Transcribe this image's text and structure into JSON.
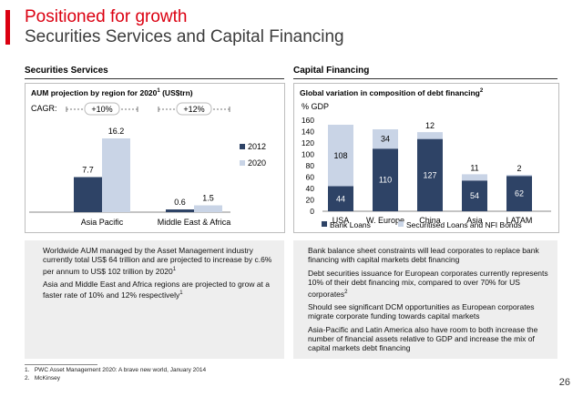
{
  "header": {
    "title_line1": "Positioned for growth",
    "title_line2": "Securities Services and Capital Financing"
  },
  "colors": {
    "accent": "#db0011",
    "dark_series": "#2e4366",
    "light_series": "#c9d4e6"
  },
  "left": {
    "section_title": "Securities Services",
    "chart_title": "AUM projection by region for 2020",
    "chart_title_sup": "1",
    "chart_title_suffix": " (US$trn)",
    "cagr_label": "CAGR:",
    "bullets": [
      {
        "text": "Worldwide AUM managed by the Asset Management industry currently total US$ 64 trillion and are projected to increase by c.6% per annum to US$ 102 trillion by 2020",
        "sup": "1"
      },
      {
        "text": "Asia and Middle East and Africa regions are projected to grow at a faster rate of 10% and 12% respectively",
        "sup": "1"
      }
    ]
  },
  "right": {
    "section_title": "Capital Financing",
    "chart_title": "Global variation in composition of debt financing",
    "chart_title_sup": "2",
    "bullets": [
      {
        "text": "Bank balance sheet constraints will lead corporates to replace bank financing with capital markets debt financing",
        "sup": ""
      },
      {
        "text": "Debt securities issuance for European corporates currently represents 10% of their debt financing mix, compared to over 70% for US corporates",
        "sup": "2"
      },
      {
        "text": "Should see significant DCM opportunities as European corporates migrate corporate funding towards capital markets",
        "sup": ""
      },
      {
        "text": "Asia-Pacific and Latin America also have room to both increase the number of financial assets relative to GDP and increase the mix of capital markets debt financing",
        "sup": ""
      }
    ]
  },
  "chart_data": [
    {
      "type": "bar",
      "title": "AUM projection by region for 2020 (US$trn)",
      "categories": [
        "Asia Pacific",
        "Middle East & Africa"
      ],
      "series": [
        {
          "name": "2012",
          "values": [
            7.7,
            0.6
          ],
          "labels": [
            "7.7",
            "0.6"
          ]
        },
        {
          "name": "2020",
          "values": [
            16.2,
            1.5
          ],
          "labels": [
            "16.2",
            "1.5"
          ]
        }
      ],
      "cagr": [
        "+10%",
        "+12%"
      ],
      "legend": "right",
      "grid": false
    },
    {
      "type": "bar",
      "stacked": true,
      "title": "Global variation in composition of debt financing",
      "ylabel": "% GDP",
      "ylim": [
        0,
        160
      ],
      "yticks": [
        0,
        20,
        40,
        60,
        80,
        100,
        120,
        140,
        160
      ],
      "categories": [
        "USA",
        "W. Europe",
        "China",
        "Asia",
        "LATAM"
      ],
      "series": [
        {
          "name": "Bank Loans",
          "values": [
            44,
            110,
            127,
            54,
            62
          ]
        },
        {
          "name": "Securitised Loans and NFI Bonds",
          "values": [
            108,
            34,
            12,
            11,
            2
          ]
        }
      ],
      "legend": "bottom",
      "grid": false
    }
  ],
  "footnotes": [
    {
      "num": "1.",
      "text": "PWC Asset Management 2020: A brave new world, January 2014"
    },
    {
      "num": "2.",
      "text": "McKinsey"
    }
  ],
  "page_number": "26"
}
